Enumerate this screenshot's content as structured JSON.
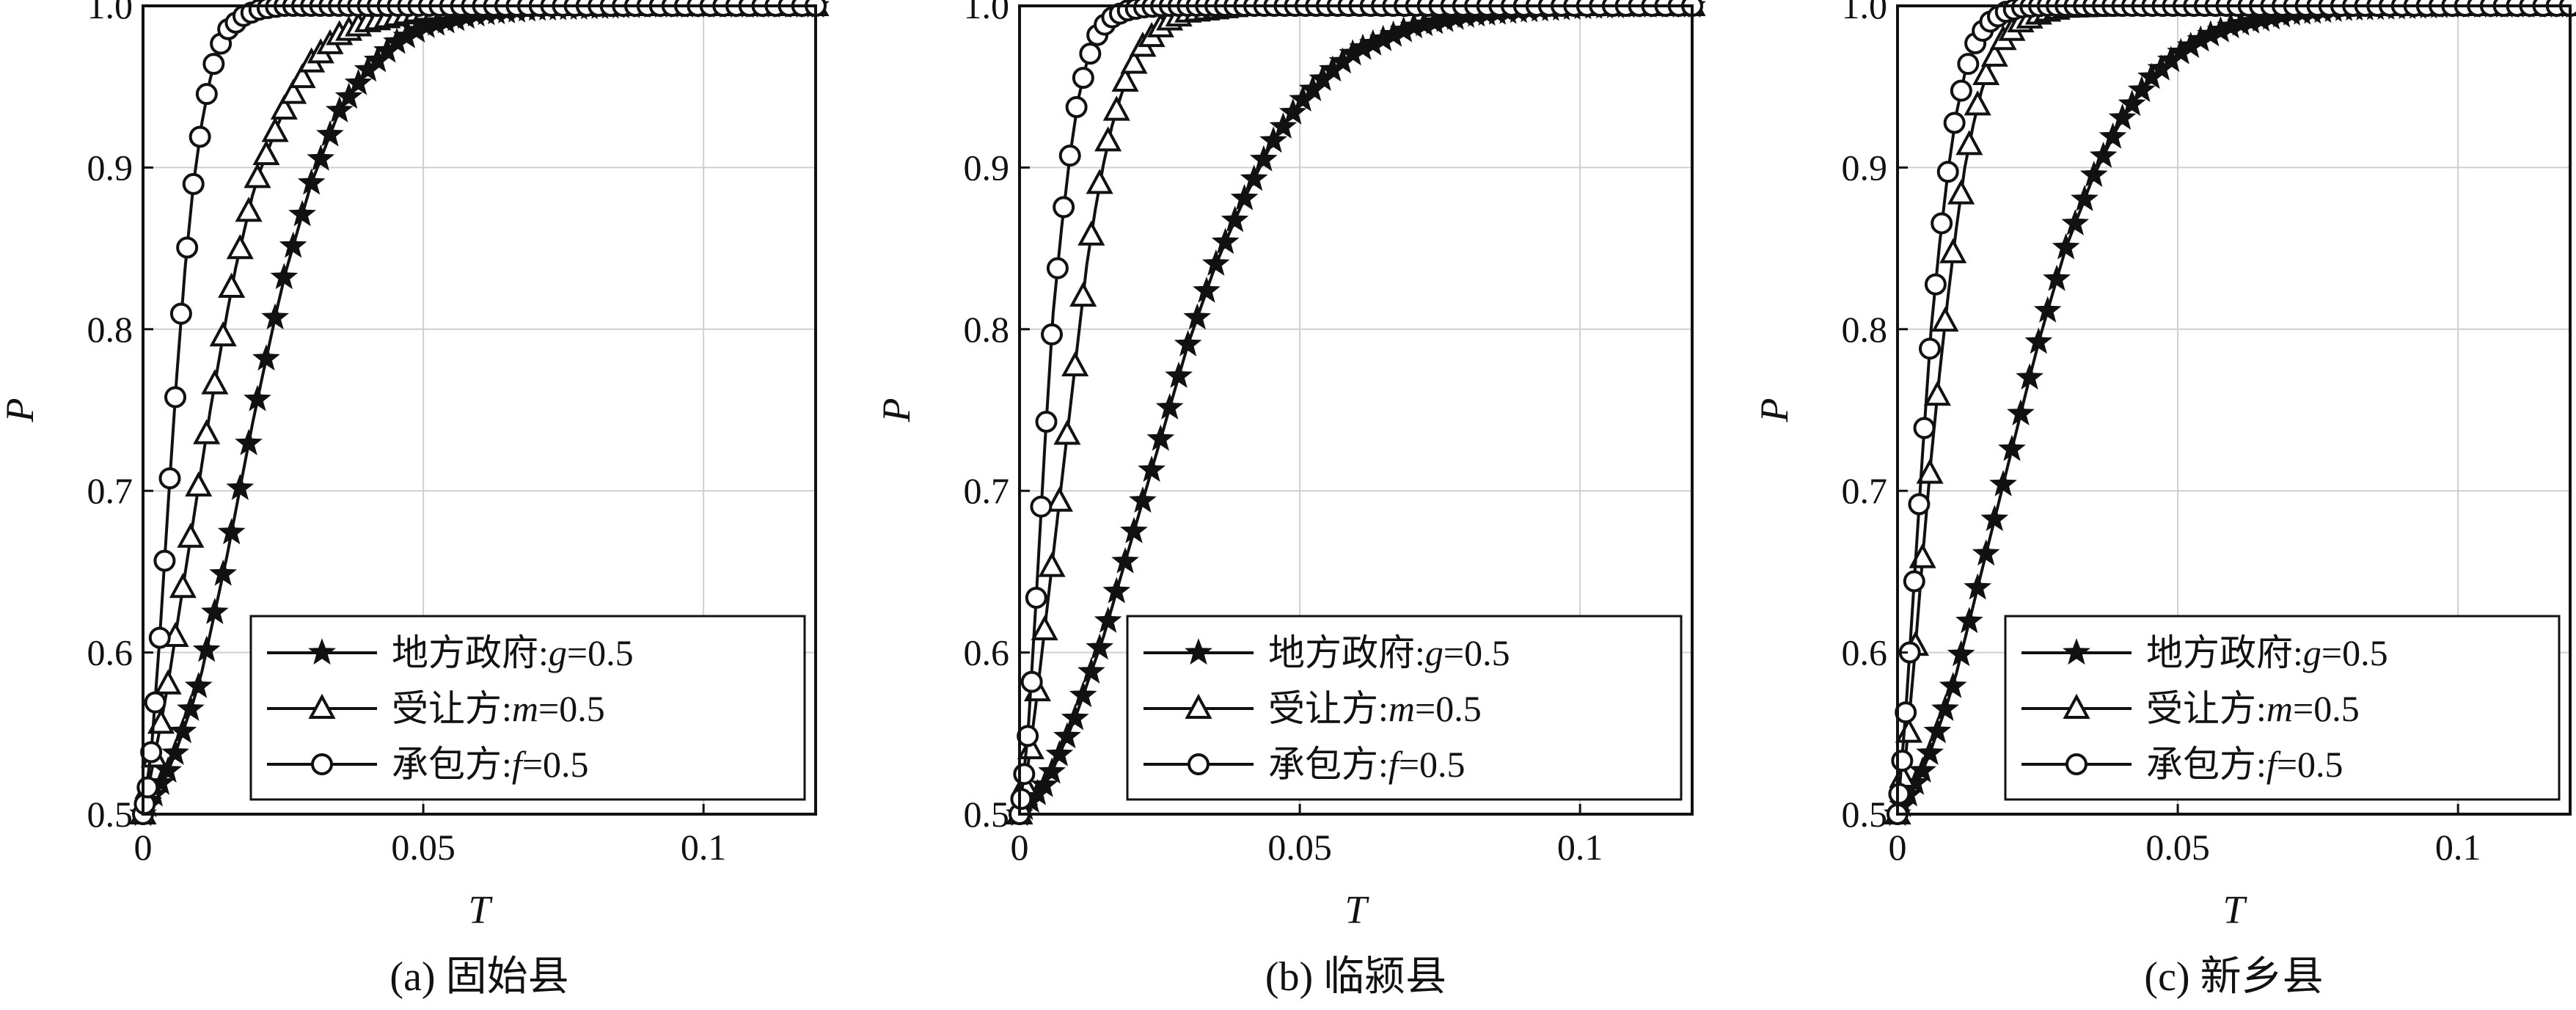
{
  "chart_data": [
    {
      "type": "line",
      "caption": "(a) 固始县",
      "xlabel": "T",
      "ylabel": "P",
      "xlim": [
        0,
        0.12
      ],
      "ylim": [
        0.5,
        1.0
      ],
      "xticks": [
        0,
        0.05,
        0.1
      ],
      "xtick_labels": [
        "0",
        "0.05",
        "0.1"
      ],
      "yticks": [
        0.5,
        0.6,
        0.7,
        0.8,
        0.9,
        1.0
      ],
      "ytick_labels": [
        "0.5",
        "0.6",
        "0.7",
        "0.8",
        "0.9",
        "1.0"
      ],
      "grid": true,
      "legend_position": "bottom-right",
      "series": [
        {
          "name": "地方政府",
          "param": "g=0.5",
          "marker": "star",
          "x": [
            0.0,
            0.005,
            0.01,
            0.015,
            0.02,
            0.025,
            0.03,
            0.035,
            0.04,
            0.045,
            0.05,
            0.06,
            0.07,
            0.08,
            0.09,
            0.1,
            0.11,
            0.12
          ],
          "y": [
            0.5,
            0.53,
            0.58,
            0.66,
            0.75,
            0.83,
            0.89,
            0.935,
            0.96,
            0.977,
            0.987,
            0.995,
            0.998,
            0.999,
            1.0,
            1.0,
            1.0,
            1.0
          ]
        },
        {
          "name": "受让方",
          "param": "m=0.5",
          "marker": "triangle",
          "x": [
            0.0,
            0.004,
            0.008,
            0.012,
            0.016,
            0.02,
            0.025,
            0.03,
            0.035,
            0.04,
            0.05,
            0.06,
            0.07,
            0.08,
            0.1,
            0.12
          ],
          "y": [
            0.5,
            0.57,
            0.66,
            0.75,
            0.83,
            0.89,
            0.935,
            0.965,
            0.982,
            0.99,
            0.997,
            0.999,
            1.0,
            1.0,
            1.0,
            1.0
          ]
        },
        {
          "name": "承包方",
          "param": "f=0.5",
          "marker": "circle",
          "x": [
            0.0,
            0.001,
            0.002,
            0.003,
            0.005,
            0.007,
            0.009,
            0.011,
            0.013,
            0.015,
            0.018,
            0.021,
            0.025,
            0.03,
            0.04,
            0.05,
            0.06,
            0.08,
            0.1,
            0.12
          ],
          "y": [
            0.5,
            0.52,
            0.56,
            0.61,
            0.72,
            0.82,
            0.89,
            0.94,
            0.97,
            0.985,
            0.994,
            0.998,
            1.0,
            1.0,
            1.0,
            1.0,
            1.0,
            1.0,
            1.0,
            1.0
          ]
        }
      ]
    },
    {
      "type": "line",
      "caption": "(b) 临颍县",
      "xlabel": "T",
      "ylabel": "P",
      "xlim": [
        0,
        0.12
      ],
      "ylim": [
        0.5,
        1.0
      ],
      "xticks": [
        0,
        0.05,
        0.1
      ],
      "xtick_labels": [
        "0",
        "0.05",
        "0.1"
      ],
      "yticks": [
        0.5,
        0.6,
        0.7,
        0.8,
        0.9,
        1.0
      ],
      "ytick_labels": [
        "0.5",
        "0.6",
        "0.7",
        "0.8",
        "0.9",
        "1.0"
      ],
      "grid": true,
      "legend_position": "bottom-right",
      "series": [
        {
          "name": "地方政府",
          "param": "g=0.5",
          "marker": "star",
          "x": [
            0.0,
            0.005,
            0.01,
            0.015,
            0.02,
            0.025,
            0.03,
            0.035,
            0.04,
            0.045,
            0.05,
            0.055,
            0.06,
            0.07,
            0.08,
            0.09,
            0.1,
            0.11,
            0.12
          ],
          "y": [
            0.5,
            0.52,
            0.56,
            0.61,
            0.67,
            0.73,
            0.79,
            0.84,
            0.88,
            0.915,
            0.94,
            0.958,
            0.972,
            0.987,
            0.994,
            0.997,
            0.999,
            1.0,
            1.0
          ]
        },
        {
          "name": "受让方",
          "param": "m=0.5",
          "marker": "triangle",
          "x": [
            0.0,
            0.002,
            0.004,
            0.006,
            0.008,
            0.01,
            0.012,
            0.014,
            0.016,
            0.019,
            0.022,
            0.026,
            0.03,
            0.04,
            0.05,
            0.06,
            0.08,
            0.1,
            0.12
          ],
          "y": [
            0.5,
            0.54,
            0.6,
            0.66,
            0.72,
            0.78,
            0.84,
            0.885,
            0.92,
            0.955,
            0.975,
            0.99,
            0.996,
            1.0,
            1.0,
            1.0,
            1.0,
            1.0,
            1.0
          ]
        },
        {
          "name": "承包方",
          "param": "f=0.5",
          "marker": "circle",
          "x": [
            0.0,
            0.001,
            0.002,
            0.004,
            0.006,
            0.008,
            0.01,
            0.012,
            0.014,
            0.016,
            0.019,
            0.022,
            0.026,
            0.03,
            0.04,
            0.05,
            0.06,
            0.08,
            0.1,
            0.12
          ],
          "y": [
            0.5,
            0.53,
            0.57,
            0.7,
            0.81,
            0.88,
            0.935,
            0.965,
            0.983,
            0.992,
            0.997,
            0.999,
            1.0,
            1.0,
            1.0,
            1.0,
            1.0,
            1.0,
            1.0,
            1.0
          ]
        }
      ]
    },
    {
      "type": "line",
      "caption": "(c) 新乡县",
      "xlabel": "T",
      "ylabel": "P",
      "xlim": [
        0,
        0.12
      ],
      "ylim": [
        0.5,
        1.0
      ],
      "xticks": [
        0,
        0.05,
        0.1
      ],
      "xtick_labels": [
        "0",
        "0.05",
        "0.1"
      ],
      "yticks": [
        0.5,
        0.6,
        0.7,
        0.8,
        0.9,
        1.0
      ],
      "ytick_labels": [
        "0.5",
        "0.6",
        "0.7",
        "0.8",
        "0.9",
        "1.0"
      ],
      "grid": true,
      "legend_position": "bottom-right",
      "series": [
        {
          "name": "地方政府",
          "param": "g=0.5",
          "marker": "star",
          "x": [
            0.0,
            0.005,
            0.01,
            0.015,
            0.02,
            0.025,
            0.03,
            0.035,
            0.04,
            0.045,
            0.05,
            0.055,
            0.06,
            0.07,
            0.08,
            0.09,
            0.1,
            0.11,
            0.12
          ],
          "y": [
            0.5,
            0.53,
            0.58,
            0.65,
            0.72,
            0.79,
            0.85,
            0.895,
            0.93,
            0.955,
            0.97,
            0.981,
            0.988,
            0.995,
            0.998,
            0.999,
            1.0,
            1.0,
            1.0
          ]
        },
        {
          "name": "受让方",
          "param": "m=0.5",
          "marker": "triangle",
          "x": [
            0.0,
            0.002,
            0.004,
            0.006,
            0.008,
            0.01,
            0.012,
            0.014,
            0.016,
            0.019,
            0.022,
            0.026,
            0.03,
            0.04,
            0.05,
            0.06,
            0.08,
            0.1,
            0.12
          ],
          "y": [
            0.5,
            0.55,
            0.64,
            0.72,
            0.79,
            0.85,
            0.9,
            0.935,
            0.96,
            0.98,
            0.99,
            0.996,
            0.999,
            1.0,
            1.0,
            1.0,
            1.0,
            1.0,
            1.0
          ]
        },
        {
          "name": "承包方",
          "param": "f=0.5",
          "marker": "circle",
          "x": [
            0.0,
            0.001,
            0.002,
            0.004,
            0.006,
            0.008,
            0.01,
            0.012,
            0.014,
            0.016,
            0.019,
            0.022,
            0.026,
            0.03,
            0.04,
            0.05,
            0.06,
            0.08,
            0.1,
            0.12
          ],
          "y": [
            0.5,
            0.54,
            0.59,
            0.7,
            0.8,
            0.87,
            0.925,
            0.958,
            0.978,
            0.989,
            0.996,
            0.999,
            1.0,
            1.0,
            1.0,
            1.0,
            1.0,
            1.0,
            1.0,
            1.0
          ]
        }
      ]
    }
  ]
}
